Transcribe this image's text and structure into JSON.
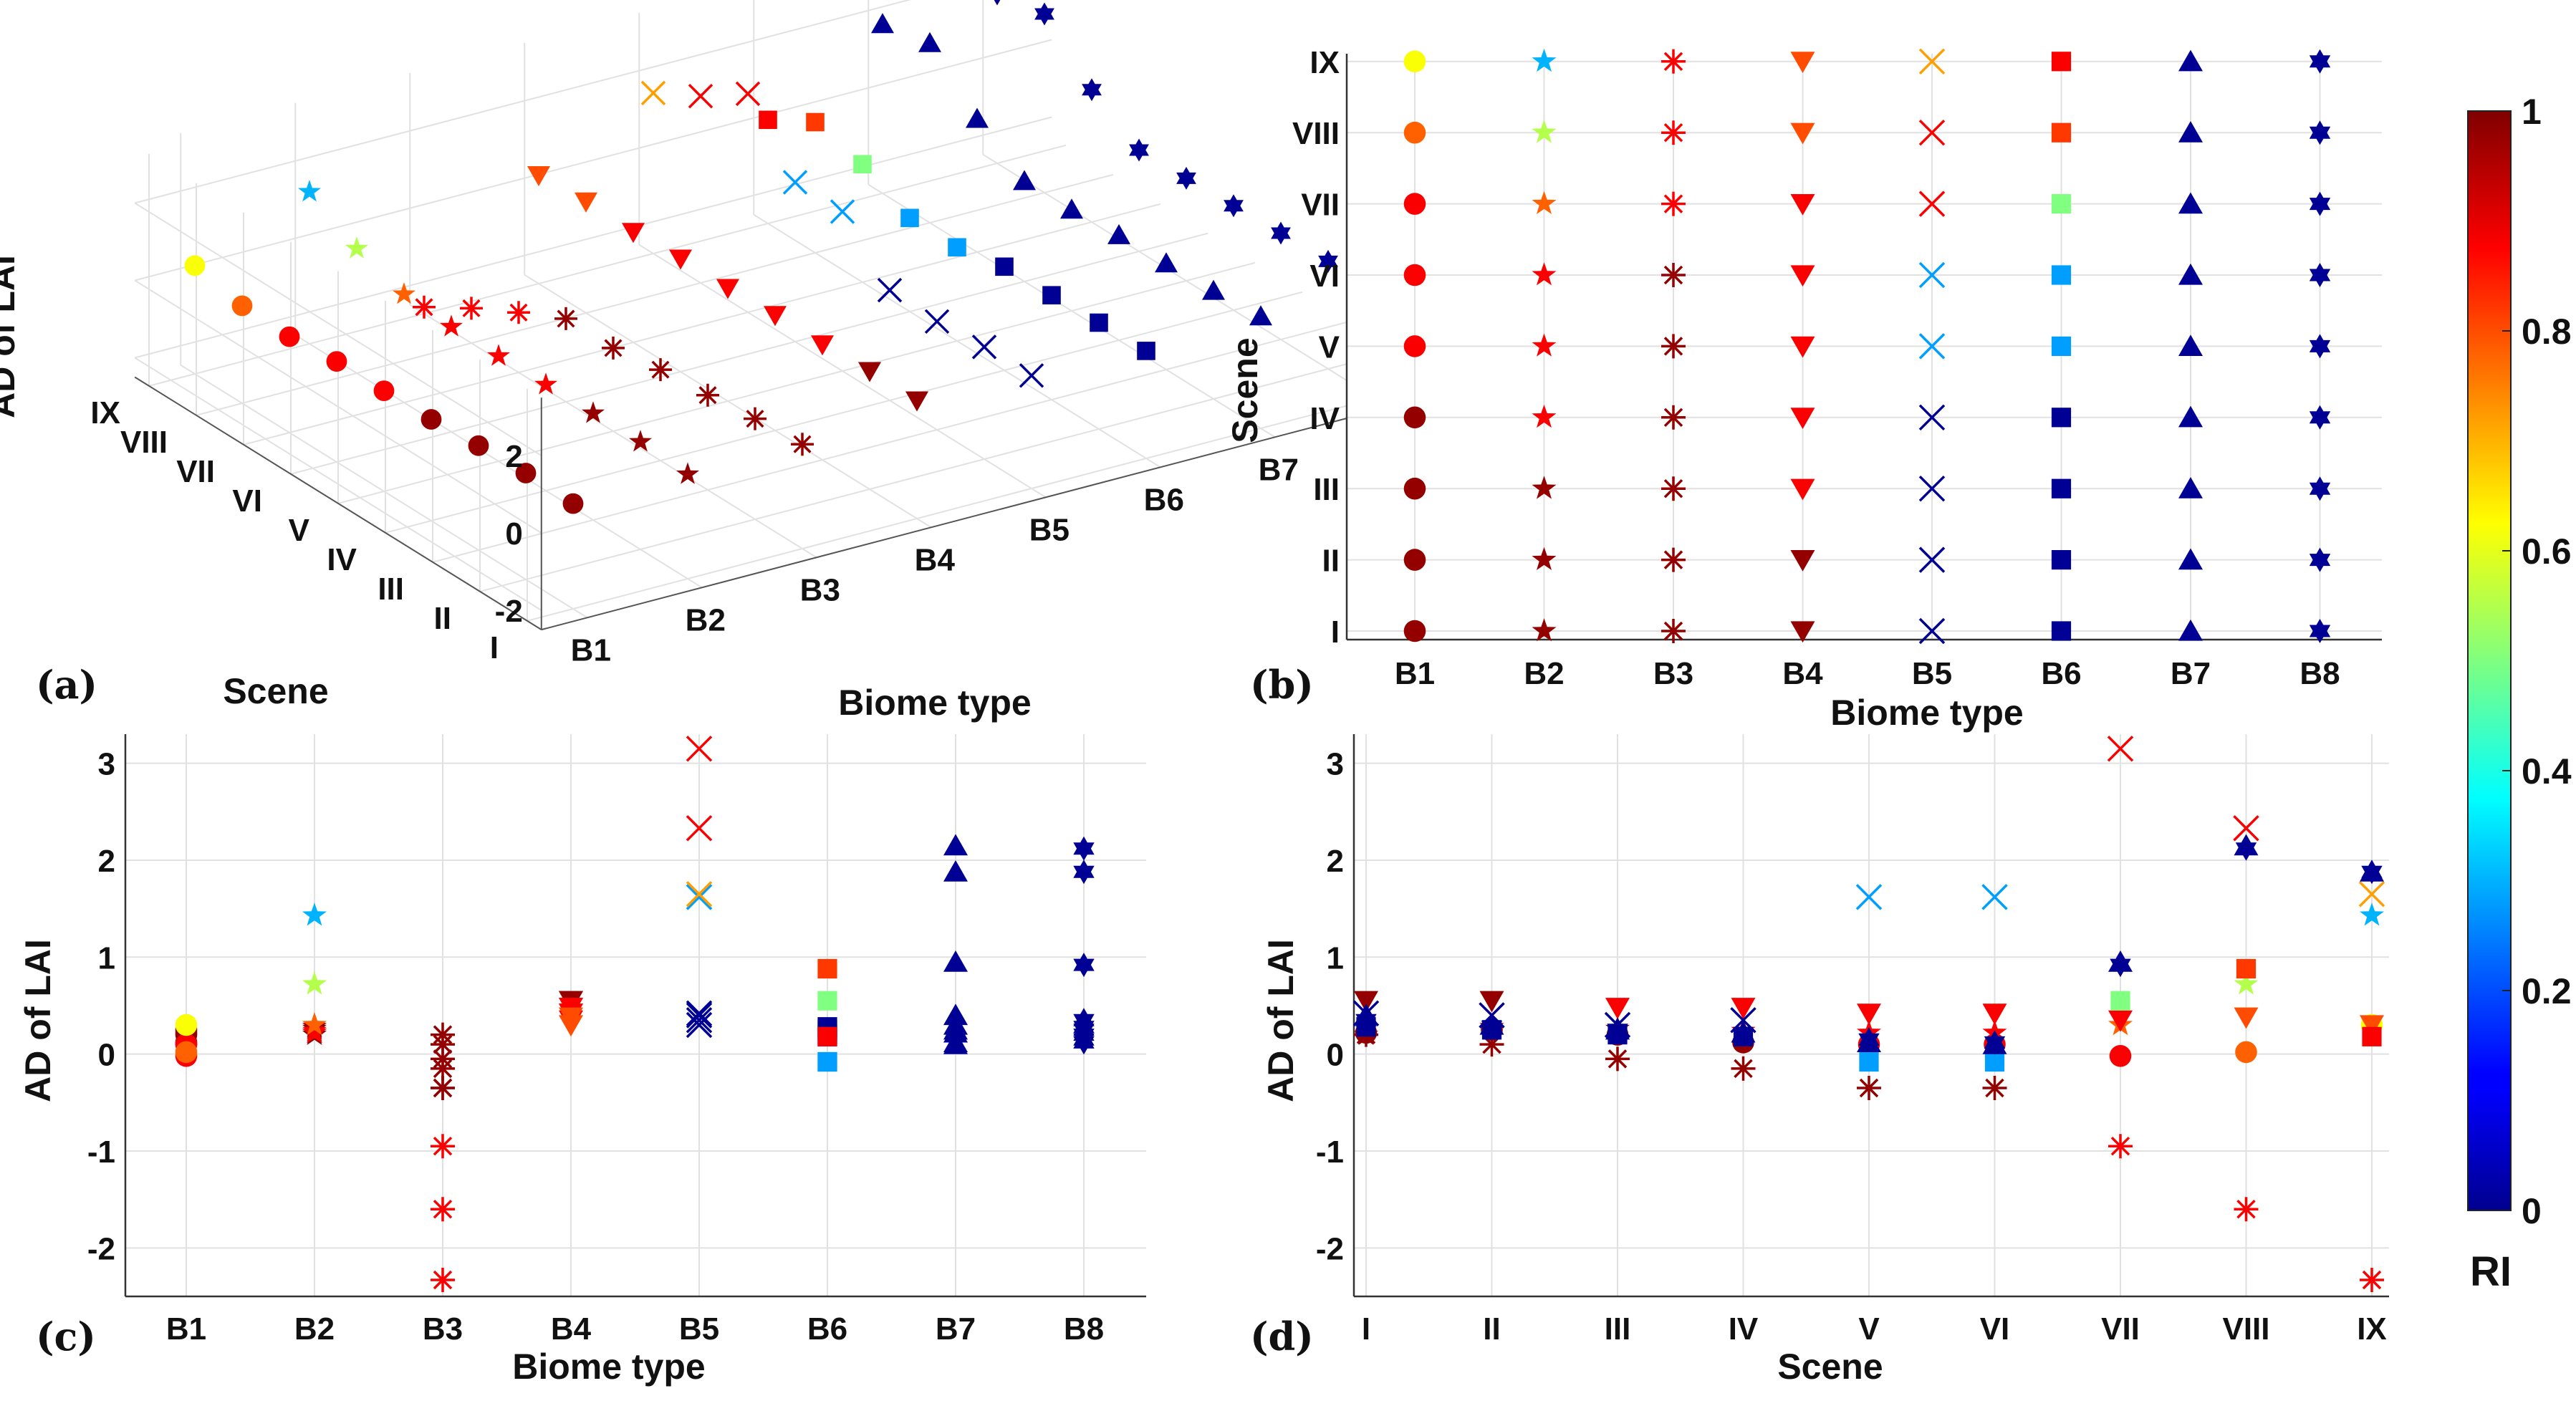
{
  "chart_data": [
    {
      "id": "a",
      "type": "scatter3d",
      "panel_label": "(a)",
      "zlabel": "AD of LAI",
      "xlabel": "Biome type",
      "ylabel": "Scene",
      "biomes": [
        "B1",
        "B2",
        "B3",
        "B4",
        "B5",
        "B6",
        "B7",
        "B8"
      ],
      "scenes": [
        "I",
        "II",
        "III",
        "IV",
        "V",
        "VI",
        "VII",
        "VIII",
        "IX"
      ],
      "zlim": [
        -2.5,
        3.5
      ],
      "zticks": [
        "-2",
        "0",
        "2"
      ]
    },
    {
      "id": "b",
      "type": "scatter",
      "panel_label": "(b)",
      "xlabel": "Biome type",
      "ylabel": "Scene",
      "categories": [
        "B1",
        "B2",
        "B3",
        "B4",
        "B5",
        "B6",
        "B7",
        "B8"
      ],
      "scenes": [
        "I",
        "II",
        "III",
        "IV",
        "V",
        "VI",
        "VII",
        "VIII",
        "IX"
      ]
    },
    {
      "id": "c",
      "type": "scatter",
      "panel_label": "(c)",
      "xlabel": "Biome type",
      "ylabel": "AD of LAI",
      "categories": [
        "B1",
        "B2",
        "B3",
        "B4",
        "B5",
        "B6",
        "B7",
        "B8"
      ],
      "ylim": [
        -2.5,
        3.3
      ],
      "yticks": [
        "-2",
        "-1",
        "0",
        "1",
        "2",
        "3"
      ]
    },
    {
      "id": "d",
      "type": "scatter",
      "panel_label": "(d)",
      "xlabel": "Scene",
      "ylabel": "AD of LAI",
      "categories": [
        "I",
        "II",
        "III",
        "IV",
        "V",
        "VI",
        "VII",
        "VIII",
        "IX"
      ],
      "ylim": [
        -2.5,
        3.3
      ],
      "yticks": [
        "-2",
        "-1",
        "0",
        "1",
        "2",
        "3"
      ]
    },
    {
      "id": "colorbar",
      "type": "colorbar",
      "label": "RI",
      "range": [
        0,
        1
      ],
      "ticks": [
        "0",
        "0.2",
        "0.4",
        "0.6",
        "0.8",
        "1"
      ],
      "colormap": "jet"
    }
  ],
  "dataset": {
    "markers": [
      "circle",
      "star",
      "asterisk",
      "triangle-down",
      "x",
      "square",
      "triangle-up",
      "hexagram"
    ],
    "ad": [
      [
        0.22,
        0.25,
        0.2,
        0.12,
        0.1,
        0.1,
        -0.02,
        0.02,
        0.3
      ],
      [
        0.2,
        0.28,
        0.26,
        0.24,
        0.22,
        0.22,
        0.3,
        0.72,
        1.43
      ],
      [
        0.2,
        0.1,
        -0.05,
        -0.15,
        -0.35,
        -0.35,
        -0.95,
        -1.6,
        -2.33
      ],
      [
        0.55,
        0.55,
        0.48,
        0.48,
        0.42,
        0.42,
        0.35,
        0.38,
        0.3
      ],
      [
        0.42,
        0.4,
        0.3,
        0.35,
        1.62,
        1.62,
        3.15,
        2.33,
        1.65
      ],
      [
        0.28,
        0.25,
        0.2,
        0.18,
        -0.08,
        -0.08,
        0.55,
        0.88,
        0.18
      ],
      [
        0.4,
        0.3,
        0.25,
        0.22,
        0.12,
        0.1,
        0.95,
        2.15,
        1.88
      ],
      [
        0.35,
        0.28,
        0.25,
        0.2,
        0.15,
        0.12,
        0.92,
        2.12,
        1.88
      ]
    ],
    "ri": [
      [
        0.98,
        0.98,
        0.98,
        0.98,
        0.88,
        0.88,
        0.88,
        0.78,
        0.62
      ],
      [
        0.98,
        0.98,
        0.98,
        0.88,
        0.88,
        0.88,
        0.78,
        0.55,
        0.3
      ],
      [
        0.98,
        0.98,
        0.98,
        0.98,
        0.98,
        0.98,
        0.88,
        0.88,
        0.88
      ],
      [
        0.98,
        0.98,
        0.88,
        0.88,
        0.88,
        0.88,
        0.88,
        0.8,
        0.8
      ],
      [
        0.02,
        0.02,
        0.02,
        0.02,
        0.28,
        0.28,
        0.88,
        0.88,
        0.72
      ],
      [
        0.02,
        0.02,
        0.02,
        0.02,
        0.28,
        0.28,
        0.5,
        0.82,
        0.88
      ],
      [
        0.02,
        0.02,
        0.02,
        0.02,
        0.02,
        0.02,
        0.02,
        0.02,
        0.02
      ],
      [
        0.02,
        0.02,
        0.02,
        0.02,
        0.02,
        0.02,
        0.02,
        0.02,
        0.02
      ]
    ]
  }
}
